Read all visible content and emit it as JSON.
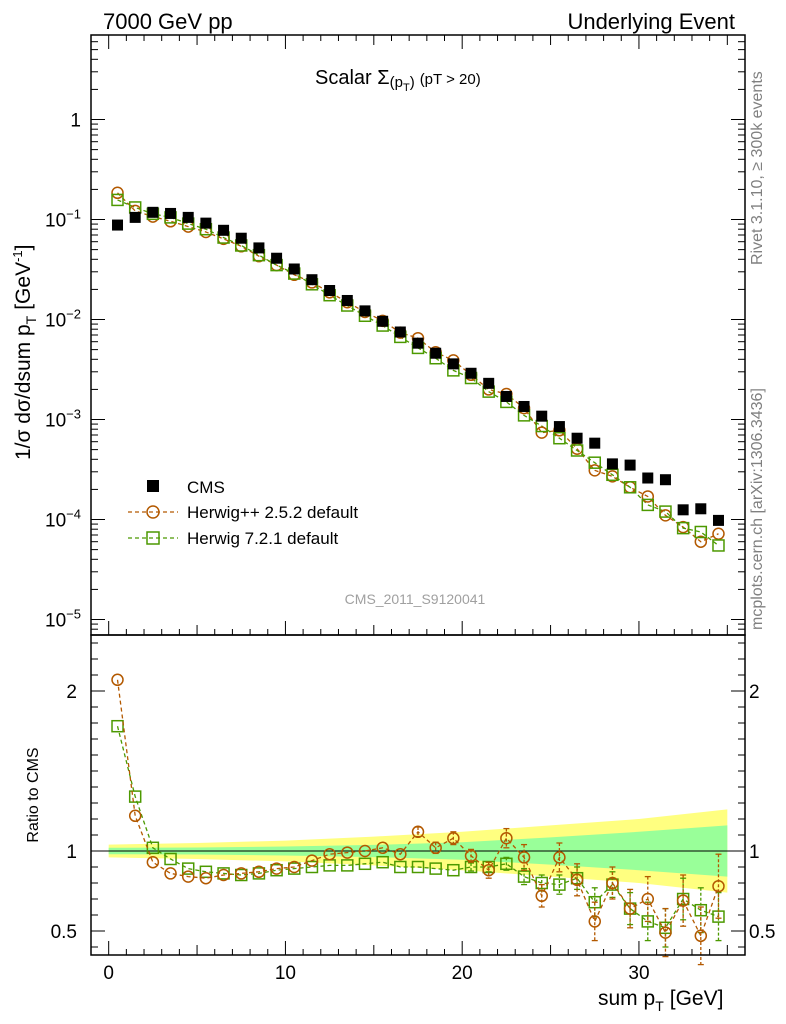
{
  "header": {
    "left": "7000 GeV pp",
    "right": "Underlying Event"
  },
  "side_labels": {
    "rivet": "Rivet 3.1.10, ≥ 300k events",
    "mcplots": "mcplots.cern.ch [arXiv:1306.3436]"
  },
  "analysis_tag": "CMS_2011_S9120041",
  "colors": {
    "cms": "#000000",
    "herwigpp": "#b35900",
    "herwig7": "#4c9900",
    "band_inner": "#99ff99",
    "band_outer": "#ffff80"
  },
  "chart_data": [
    {
      "type": "scatter",
      "panel": "main",
      "title_main": "Scalar Σ",
      "title_sub": "(p",
      "title_sub_t": "T",
      "title_close": ")",
      "title_cut": "(pT > 20)",
      "ylabel": "1/σ dσ/dsum p",
      "ylabel_sub": "T",
      "ylabel_unit": "[GeV",
      "ylabel_exp": "-1",
      "ylabel_close": "]",
      "yscale": "log",
      "ylim": [
        7e-06,
        7
      ],
      "xlim": [
        -1,
        36
      ],
      "yticks": [
        {
          "value": 1,
          "base": "1",
          "exp": ""
        },
        {
          "value": 0.1,
          "base": "10",
          "exp": "−1"
        },
        {
          "value": 0.01,
          "base": "10",
          "exp": "−2"
        },
        {
          "value": 0.001,
          "base": "10",
          "exp": "−3"
        },
        {
          "value": 0.0001,
          "base": "10",
          "exp": "−4"
        },
        {
          "value": 1e-05,
          "base": "10",
          "exp": "−5"
        }
      ],
      "legend": {
        "position": "lower-left",
        "entries": [
          "CMS",
          "Herwig++ 2.5.2 default",
          "Herwig 7.2.1 default"
        ]
      },
      "x": [
        0.5,
        1.5,
        2.5,
        3.5,
        4.5,
        5.5,
        6.5,
        7.5,
        8.5,
        9.5,
        10.5,
        11.5,
        12.5,
        13.5,
        14.5,
        15.5,
        16.5,
        17.5,
        18.5,
        19.5,
        20.5,
        21.5,
        22.5,
        23.5,
        24.5,
        25.5,
        26.5,
        27.5,
        28.5,
        29.5,
        30.5,
        31.5,
        32.5,
        33.5,
        34.5
      ],
      "series": [
        {
          "name": "CMS",
          "values": [
            0.088,
            0.105,
            0.118,
            0.115,
            0.105,
            0.092,
            0.078,
            0.065,
            0.052,
            0.041,
            0.032,
            0.025,
            0.0195,
            0.0155,
            0.0122,
            0.0096,
            0.0075,
            0.0058,
            0.0046,
            0.0036,
            0.0029,
            0.0023,
            0.0017,
            0.00135,
            0.00108,
            0.00085,
            0.00065,
            0.00058,
            0.00036,
            0.00035,
            0.00026,
            0.00025,
            0.000125,
            0.000128,
            9.8e-05
          ]
        },
        {
          "name": "Herwig++ 2.5.2 default",
          "values": [
            0.185,
            0.122,
            0.107,
            0.096,
            0.085,
            0.075,
            0.064,
            0.054,
            0.043,
            0.035,
            0.028,
            0.0235,
            0.0187,
            0.0149,
            0.0119,
            0.0097,
            0.0074,
            0.0065,
            0.0047,
            0.0039,
            0.0028,
            0.002,
            0.0018,
            0.0013,
            0.00074,
            0.00078,
            0.00051,
            0.00031,
            0.00027,
            0.00021,
            0.00017,
            0.00011,
            8.4e-05,
            6e-05,
            7.2e-05
          ]
        },
        {
          "name": "Herwig 7.2.1 default",
          "values": [
            0.157,
            0.132,
            0.114,
            0.105,
            0.091,
            0.08,
            0.066,
            0.055,
            0.044,
            0.035,
            0.0288,
            0.0225,
            0.0175,
            0.0138,
            0.0109,
            0.0087,
            0.0067,
            0.0052,
            0.0041,
            0.0031,
            0.0026,
            0.0019,
            0.0015,
            0.0011,
            0.00086,
            0.00065,
            0.00049,
            0.00037,
            0.00028,
            0.00021,
            0.00014,
            0.00012,
            8.2e-05,
            7.5e-05,
            5.5e-05
          ]
        }
      ]
    },
    {
      "type": "line",
      "panel": "ratio",
      "ylabel": "Ratio to CMS",
      "xlabel": "sum p",
      "xlabel_sub": "T",
      "xlabel_unit": "[GeV]",
      "ylim": [
        0.35,
        2.35
      ],
      "xlim": [
        -1,
        36
      ],
      "yticks": [
        {
          "value": 2,
          "label": "2"
        },
        {
          "value": 1,
          "label": "1"
        },
        {
          "value": 0.5,
          "label": "0.5"
        }
      ],
      "xticks": [
        {
          "value": 0,
          "label": "0"
        },
        {
          "value": 10,
          "label": "10"
        },
        {
          "value": 20,
          "label": "20"
        },
        {
          "value": 30,
          "label": "30"
        }
      ],
      "x": [
        0.5,
        1.5,
        2.5,
        3.5,
        4.5,
        5.5,
        6.5,
        7.5,
        8.5,
        9.5,
        10.5,
        11.5,
        12.5,
        13.5,
        14.5,
        15.5,
        16.5,
        17.5,
        18.5,
        19.5,
        20.5,
        21.5,
        22.5,
        23.5,
        24.5,
        25.5,
        26.5,
        27.5,
        28.5,
        29.5,
        30.5,
        31.5,
        32.5,
        33.5,
        34.5
      ],
      "band": {
        "x": [
          0,
          5,
          10,
          15,
          20,
          25,
          30,
          35
        ],
        "inner_half_width": [
          0.02,
          0.022,
          0.028,
          0.038,
          0.055,
          0.085,
          0.12,
          0.16
        ],
        "outer_half_width": [
          0.04,
          0.05,
          0.065,
          0.09,
          0.12,
          0.16,
          0.2,
          0.26
        ]
      },
      "series": [
        {
          "name": "Herwig++ 2.5.2 default",
          "values": [
            2.07,
            1.22,
            0.93,
            0.86,
            0.84,
            0.83,
            0.85,
            0.86,
            0.87,
            0.89,
            0.9,
            0.94,
            0.98,
            0.99,
            1.0,
            1.02,
            0.98,
            1.12,
            1.02,
            1.08,
            0.97,
            0.88,
            1.08,
            0.96,
            0.72,
            0.96,
            0.82,
            0.56,
            0.8,
            0.64,
            0.7,
            0.49,
            0.69,
            0.47,
            0.78
          ],
          "errors": [
            0.01,
            0.01,
            0.01,
            0.01,
            0.01,
            0.01,
            0.01,
            0.01,
            0.01,
            0.01,
            0.01,
            0.01,
            0.01,
            0.01,
            0.01,
            0.015,
            0.02,
            0.03,
            0.035,
            0.04,
            0.04,
            0.05,
            0.06,
            0.08,
            0.07,
            0.09,
            0.1,
            0.12,
            0.1,
            0.12,
            0.14,
            0.15,
            0.16,
            0.18,
            0.2
          ]
        },
        {
          "name": "Herwig 7.2.1 default",
          "values": [
            1.78,
            1.34,
            1.02,
            0.95,
            0.89,
            0.87,
            0.86,
            0.85,
            0.86,
            0.88,
            0.89,
            0.9,
            0.91,
            0.91,
            0.92,
            0.93,
            0.9,
            0.9,
            0.89,
            0.88,
            0.9,
            0.9,
            0.92,
            0.84,
            0.8,
            0.79,
            0.83,
            0.68,
            0.79,
            0.64,
            0.56,
            0.52,
            0.7,
            0.63,
            0.59
          ],
          "errors": [
            0.01,
            0.01,
            0.01,
            0.01,
            0.01,
            0.01,
            0.01,
            0.01,
            0.01,
            0.01,
            0.01,
            0.01,
            0.01,
            0.01,
            0.01,
            0.015,
            0.02,
            0.02,
            0.02,
            0.02,
            0.025,
            0.03,
            0.04,
            0.05,
            0.05,
            0.06,
            0.07,
            0.09,
            0.08,
            0.1,
            0.12,
            0.12,
            0.13,
            0.14,
            0.15
          ]
        }
      ]
    }
  ]
}
